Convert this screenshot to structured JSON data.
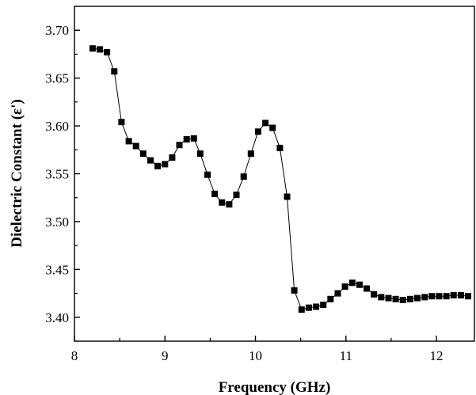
{
  "chart_data": {
    "type": "line",
    "title": "",
    "xlabel": "Frequency (GHz)",
    "ylabel": "Dielectric Constant (ε')",
    "xlim": [
      8.0,
      12.42
    ],
    "ylim": [
      3.375,
      3.725
    ],
    "x_ticks": [
      8,
      9,
      10,
      11,
      12
    ],
    "x_tick_labels": [
      "8",
      "9",
      "10",
      "11",
      "12"
    ],
    "y_ticks": [
      3.4,
      3.45,
      3.5,
      3.55,
      3.6,
      3.65,
      3.7
    ],
    "y_tick_labels": [
      "3.40",
      "3.45",
      "3.50",
      "3.55",
      "3.60",
      "3.65",
      "3.70"
    ],
    "grid": false,
    "legend": "none",
    "marker": "square",
    "color": "#000000",
    "series": [
      {
        "x": [
          8.2,
          8.28,
          8.36,
          8.44,
          8.52,
          8.6,
          8.68,
          8.76,
          8.84,
          8.92,
          9.0,
          9.08,
          9.16,
          9.24,
          9.32,
          9.39,
          9.47,
          9.55,
          9.63,
          9.71,
          9.79,
          9.87,
          9.95,
          10.03,
          10.11,
          10.19,
          10.27,
          10.35,
          10.43,
          10.51,
          10.59,
          10.67,
          10.75,
          10.83,
          10.91,
          10.99,
          11.07,
          11.15,
          11.23,
          11.31,
          11.39,
          11.47,
          11.55,
          11.63,
          11.71,
          11.79,
          11.87,
          11.95,
          12.03,
          12.11,
          12.19,
          12.27,
          12.35
        ],
        "y": [
          3.681,
          3.68,
          3.677,
          3.657,
          3.604,
          3.584,
          3.579,
          3.571,
          3.564,
          3.558,
          3.56,
          3.567,
          3.58,
          3.586,
          3.587,
          3.571,
          3.549,
          3.529,
          3.52,
          3.518,
          3.528,
          3.547,
          3.571,
          3.594,
          3.603,
          3.598,
          3.577,
          3.526,
          3.428,
          3.408,
          3.41,
          3.411,
          3.413,
          3.419,
          3.425,
          3.432,
          3.436,
          3.434,
          3.43,
          3.424,
          3.421,
          3.42,
          3.419,
          3.418,
          3.419,
          3.42,
          3.421,
          3.422,
          3.422,
          3.422,
          3.423,
          3.423,
          3.422
        ]
      }
    ]
  }
}
